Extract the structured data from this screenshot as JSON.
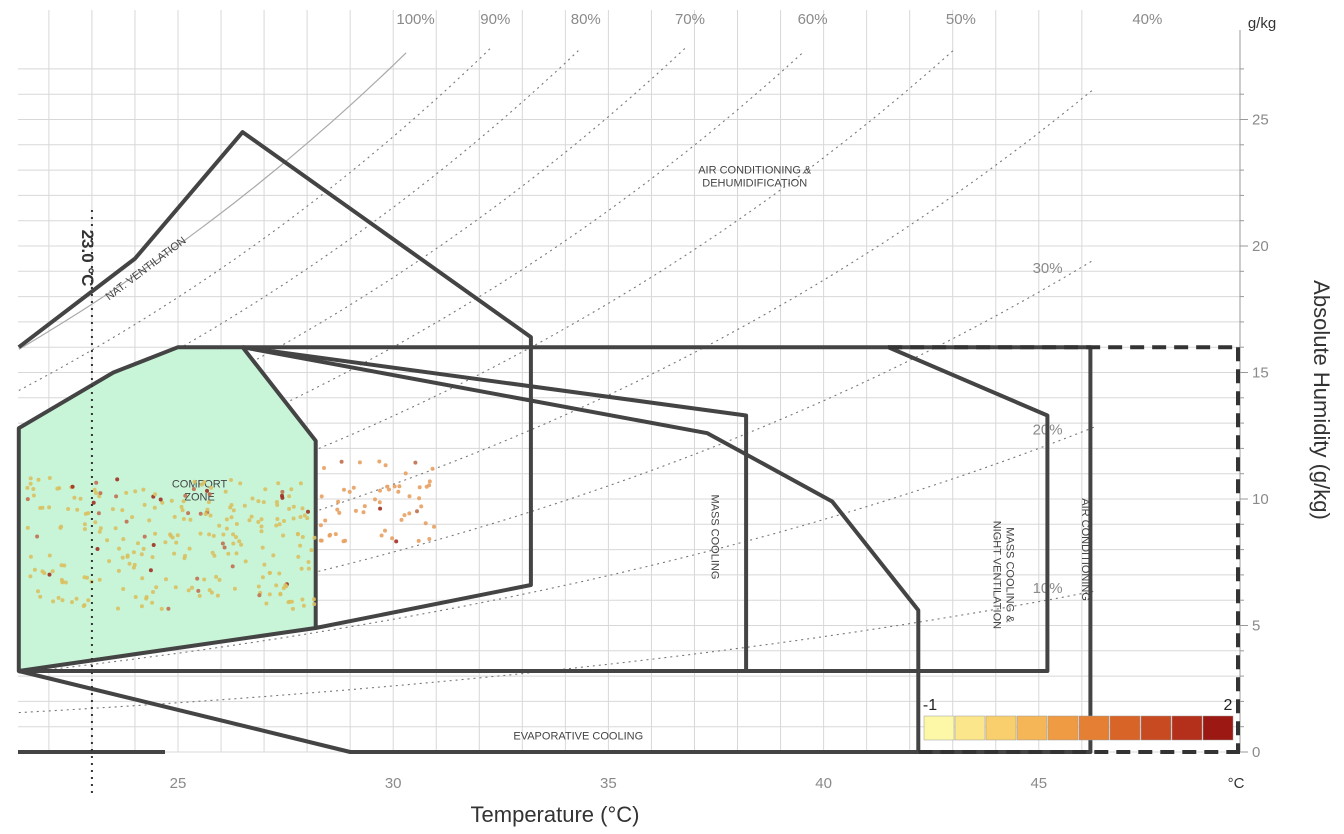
{
  "chart_data": {
    "type": "scatter",
    "title": "",
    "xlabel": "Temperature (°C)",
    "ylabel": "Absolute Humidity (g/kg)",
    "x_unit": "°C",
    "y_unit": "g/kg",
    "xlim": [
      21.3,
      46.5
    ],
    "ylim": [
      0,
      27.5
    ],
    "x_ticks": [
      25,
      30,
      35,
      40,
      45
    ],
    "y_ticks": [
      0,
      5,
      10,
      15,
      20,
      25
    ],
    "grid": true,
    "rh_curves": [
      {
        "label": "100%",
        "rh": 100
      },
      {
        "label": "90%",
        "rh": 90
      },
      {
        "label": "80%",
        "rh": 80
      },
      {
        "label": "70%",
        "rh": 70
      },
      {
        "label": "60%",
        "rh": 60
      },
      {
        "label": "50%",
        "rh": 50
      },
      {
        "label": "40%",
        "rh": 40
      },
      {
        "label": "30%",
        "rh": 30
      },
      {
        "label": "20%",
        "rh": 20
      },
      {
        "label": "10%",
        "rh": 10
      }
    ],
    "setpoint": {
      "label": "23.0 °C",
      "x": 23.0
    },
    "zones": [
      {
        "label": "COMFORT ZONE",
        "label_lines": [
          "COMFORT",
          "ZONE"
        ],
        "fill": "#c8f5d8",
        "points": [
          [
            21.3,
            12.8
          ],
          [
            23.5,
            15
          ],
          [
            25,
            16
          ],
          [
            26.5,
            16
          ],
          [
            28.2,
            12.3
          ],
          [
            28.2,
            4.9
          ],
          [
            21.3,
            3.2
          ]
        ]
      },
      {
        "label": "NAT. VENTILATION",
        "label_lines": [
          "NAT. VENTILATION"
        ],
        "fill": "none",
        "points": [
          [
            21.3,
            16
          ],
          [
            24,
            19.5
          ],
          [
            26.5,
            24.5
          ],
          [
            33.2,
            16.4
          ],
          [
            33.2,
            6.6
          ],
          [
            28.2,
            4.9
          ]
        ]
      },
      {
        "label": "MASS COOLING",
        "label_lines": [
          "MASS COOLING"
        ],
        "fill": "none",
        "points": [
          [
            26.5,
            16
          ],
          [
            37.3,
            12.6
          ],
          [
            40.2,
            9.9
          ],
          [
            42.2,
            5.6
          ],
          [
            42.2,
            0
          ]
        ]
      },
      {
        "label": "MASS COOLING & NIGHT VENTILATION",
        "label_lines": [
          "MASS COOLING &",
          "NIGHT VENTILATION"
        ],
        "fill": "none",
        "points": [
          [
            26.5,
            16
          ],
          [
            38.2,
            13.3
          ],
          [
            38.2,
            3.2
          ]
        ]
      },
      {
        "label": "AIR CONDITIONING & DEHUMIDIFICATION",
        "label_lines": [
          "AIR CONDITIONING &",
          "DEHUMIDIFICATION"
        ],
        "fill": "none",
        "points": [
          [
            26.5,
            16
          ],
          [
            41.5,
            16
          ],
          [
            45.2,
            13.3
          ],
          [
            45.2,
            3.2
          ],
          [
            21.3,
            3.2
          ]
        ]
      },
      {
        "label": "AIR CONDITIONING",
        "label_lines": [
          "AIR CONDITIONING"
        ],
        "fill": "none",
        "points": [
          [
            41.5,
            16
          ],
          [
            46.2,
            16
          ],
          [
            46.2,
            0
          ],
          [
            42.2,
            0
          ]
        ]
      },
      {
        "label": "EVAPORATIVE COOLING",
        "label_lines": [
          "EVAPORATIVE COOLING"
        ],
        "fill": "none",
        "points": [
          [
            21.3,
            3.2
          ],
          [
            29,
            0
          ],
          [
            42.2,
            0
          ]
        ]
      }
    ],
    "scatter_clusters": [
      {
        "x": [
          21.5,
          28.2
        ],
        "y": [
          5,
          11.5
        ],
        "n": 260,
        "color": "#d9c060"
      },
      {
        "x": [
          28.3,
          31
        ],
        "y": [
          7.8,
          12
        ],
        "n": 55,
        "color": "#e8a060"
      }
    ],
    "color_scale": {
      "min_label": "-1",
      "max_label": "2",
      "colors": [
        "#fdf7a8",
        "#fce68c",
        "#f8cf6c",
        "#f4b656",
        "#ef9b44",
        "#e57f34",
        "#d86428",
        "#c84a20",
        "#b4301a",
        "#9c1812"
      ]
    }
  }
}
